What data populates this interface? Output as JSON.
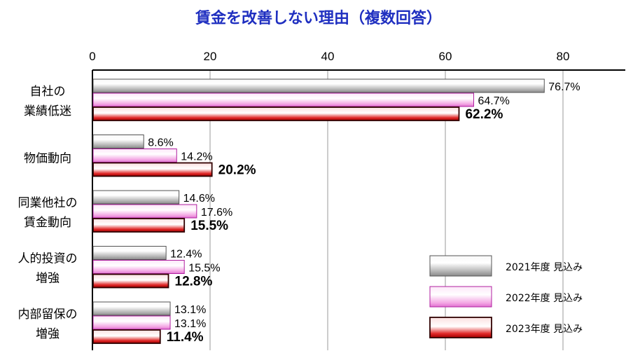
{
  "chart_data": {
    "type": "bar",
    "orientation": "horizontal",
    "title": "賃金を改善しない理由（複数回答）",
    "xlim": [
      0,
      90
    ],
    "xticks": [
      "0",
      "20",
      "40",
      "60",
      "80"
    ],
    "grid": true,
    "legend_position": "bottom-right",
    "categories": [
      [
        "自社の",
        "業績低迷"
      ],
      [
        "物価動向"
      ],
      [
        "同業他社の",
        "賃金動向"
      ],
      [
        "人的投資の",
        "増強"
      ],
      [
        "内部留保の",
        "増強"
      ]
    ],
    "series": [
      {
        "name": "2021年度 見込み",
        "color": "#b8b8b8",
        "values": [
          76.7,
          8.6,
          14.6,
          12.4,
          13.1
        ],
        "labels": [
          "76.7%",
          "8.6%",
          "14.6%",
          "12.4%",
          "13.1%"
        ]
      },
      {
        "name": "2022年度 見込み",
        "color": "#f4a8e4",
        "values": [
          64.7,
          14.2,
          17.6,
          15.5,
          13.1
        ],
        "labels": [
          "64.7%",
          "14.2%",
          "17.6%",
          "15.5%",
          "13.1%"
        ]
      },
      {
        "name": "2023年度 見込み",
        "color": "#e02828",
        "values": [
          62.2,
          20.2,
          15.5,
          12.8,
          11.4
        ],
        "labels": [
          "62.2%",
          "20.2%",
          "15.5%",
          "12.8%",
          "11.4%"
        ]
      }
    ]
  }
}
